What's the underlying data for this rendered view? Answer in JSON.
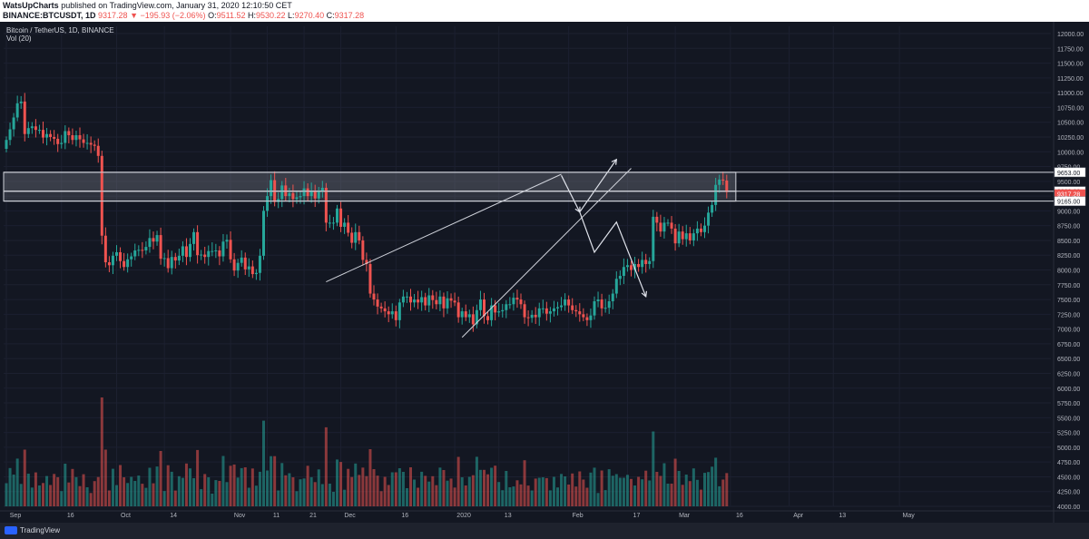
{
  "header": {
    "author": "WatsUpCharts",
    "published": "published on TradingView.com, January 31, 2020 12:10:50 CET",
    "symbol": "BINANCE:BTCUSDT, 1D",
    "last": "9317.28",
    "change": "▼ −195.93 (−2.06%)",
    "o_label": "O:",
    "o_val": "9511.52",
    "h_label": "H:",
    "h_val": "9530.22",
    "l_label": "L:",
    "l_val": "9270.40",
    "c_label": "C:",
    "c_val": "9317.28"
  },
  "legend": {
    "symbol_title": "Bitcoin / TetherUS, 1D, BINANCE",
    "volume_label": "Vol (20)"
  },
  "footer": {
    "brand": "TradingView"
  },
  "colors": {
    "up": "#26a69a",
    "down": "#ef5350",
    "background": "#131722",
    "zone": "#787b86"
  },
  "chart_data": {
    "type": "candlestick",
    "price_axis": {
      "ticks": [
        "12000.00",
        "11750.00",
        "11500.00",
        "11250.00",
        "11000.00",
        "10750.00",
        "10500.00",
        "10250.00",
        "10000.00",
        "9750.00",
        "9500.00",
        "9250.00",
        "9000.00",
        "8750.00",
        "8500.00",
        "8250.00",
        "8000.00",
        "7750.00",
        "7500.00",
        "7250.00",
        "7000.00",
        "6750.00",
        "6500.00",
        "6250.00",
        "6000.00",
        "5750.00",
        "5500.00",
        "5250.00",
        "5000.00",
        "4750.00",
        "4500.00",
        "4250.00",
        "4000.00"
      ],
      "range": [
        4000,
        12000
      ]
    },
    "price_labels": [
      {
        "text": "9653.00",
        "value": 9653,
        "style": "zone"
      },
      {
        "text": "9333.00",
        "value": 9333,
        "style": "zone"
      },
      {
        "text": "9317.28",
        "value": 9317.28,
        "style": "current"
      },
      {
        "text": "9165.00",
        "value": 9165,
        "style": "zone"
      }
    ],
    "time_axis": {
      "labels": [
        "Sep",
        "16",
        "Oct",
        "14",
        "Nov",
        "11",
        "21",
        "Dec",
        "16",
        "2020",
        "13",
        "Feb",
        "17",
        "Mar",
        "16",
        "Apr",
        "13",
        "May"
      ],
      "start": "2019-09-01",
      "end": "2020-05-10"
    },
    "zones": [
      {
        "from": 9333,
        "to": 9653,
        "start": "2019-09-01",
        "end": "2020-03-16"
      },
      {
        "from": 9165,
        "to": 9333,
        "start": "2019-09-01",
        "end": "2020-03-16"
      }
    ],
    "close": [
      10200,
      10380,
      10580,
      10820,
      10850,
      10300,
      10400,
      10430,
      10370,
      10370,
      10240,
      10300,
      10250,
      10220,
      10130,
      10150,
      10350,
      10280,
      10200,
      10280,
      10210,
      10150,
      10150,
      10120,
      10100,
      9930,
      8580,
      8130,
      8080,
      8240,
      8300,
      8150,
      8050,
      8180,
      8230,
      8330,
      8340,
      8330,
      8390,
      8540,
      8480,
      8590,
      8190,
      8200,
      8030,
      8220,
      8160,
      8240,
      8400,
      8220,
      8440,
      8640,
      8250,
      8260,
      8220,
      8320,
      8320,
      8330,
      8230,
      8480,
      8510,
      8180,
      7990,
      8120,
      8210,
      8010,
      8060,
      7930,
      7950,
      8240,
      9000,
      9250,
      9520,
      9150,
      9200,
      9430,
      9250,
      9300,
      9200,
      9230,
      9250,
      9380,
      9250,
      9340,
      9210,
      9340,
      9390,
      8800,
      8800,
      8800,
      9040,
      8730,
      8800,
      8630,
      8460,
      8640,
      8500,
      8170,
      8100,
      7600,
      7500,
      7380,
      7350,
      7300,
      7250,
      7300,
      7150,
      7450,
      7550,
      7550,
      7450,
      7500,
      7450,
      7540,
      7400,
      7570,
      7490,
      7420,
      7550,
      7350,
      7520,
      7480,
      7450,
      7200,
      7300,
      7200,
      7250,
      7080,
      7320,
      7500,
      7220,
      7150,
      7400,
      7280,
      7300,
      7320,
      7420,
      7420,
      7530,
      7500,
      7420,
      7200,
      7190,
      7240,
      7200,
      7350,
      7350,
      7260,
      7300,
      7350,
      7370,
      7400,
      7500,
      7400,
      7320,
      7300,
      7250,
      7200,
      7150,
      7230,
      7470,
      7500,
      7350,
      7360,
      7470,
      7600,
      7850,
      7900,
      8050,
      8080,
      8000,
      8100,
      8050,
      8170,
      8100,
      8150,
      8900,
      8800,
      8650,
      8800,
      8800,
      8700,
      8450,
      8650,
      8520,
      8620,
      8500,
      8620,
      8700,
      8640,
      8750,
      8970,
      9100,
      9440,
      9530,
      9513,
      9317
    ],
    "volume_label_note": "",
    "drawings": [
      {
        "type": "trendline",
        "from": [
          "2019-11-27",
          7800
        ],
        "to": [
          "2020-01-30",
          9620
        ]
      },
      {
        "type": "trendline",
        "from": [
          "2020-01-03",
          6860
        ],
        "to": [
          "2020-02-18",
          9720
        ]
      },
      {
        "type": "projection",
        "points": [
          [
            "2020-01-30",
            9600
          ],
          [
            "2020-02-04",
            8980
          ]
        ]
      },
      {
        "type": "projection",
        "points": [
          [
            "2020-02-04",
            8980
          ],
          [
            "2020-02-14",
            9870
          ]
        ]
      },
      {
        "type": "projection",
        "points": [
          [
            "2020-02-04",
            8980
          ],
          [
            "2020-02-08",
            8300
          ],
          [
            "2020-02-14",
            8810
          ],
          [
            "2020-02-22",
            7550
          ]
        ]
      }
    ]
  }
}
